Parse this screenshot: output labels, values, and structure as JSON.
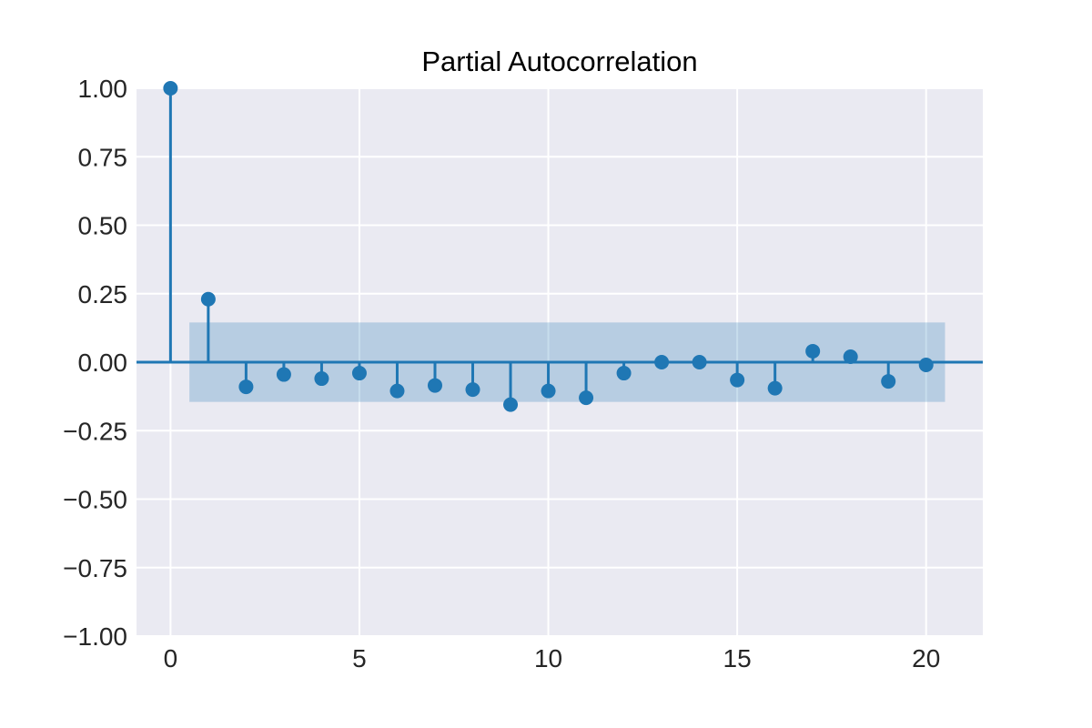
{
  "chart_data": {
    "type": "stem",
    "title": "Partial Autocorrelation",
    "xlabel": "",
    "ylabel": "",
    "xlim": [
      -0.9,
      21.5
    ],
    "ylim": [
      -1.0,
      1.0
    ],
    "x_ticks": [
      0,
      5,
      10,
      15,
      20
    ],
    "x_tick_labels": [
      "0",
      "5",
      "10",
      "15",
      "20"
    ],
    "y_ticks": [
      1.0,
      0.75,
      0.5,
      0.25,
      0.0,
      -0.25,
      -0.5,
      -0.75,
      -1.0
    ],
    "y_tick_labels": [
      "1.00",
      "0.75",
      "0.50",
      "0.25",
      "0.00",
      "−0.25",
      "−0.50",
      "−0.75",
      "−1.00"
    ],
    "grid": true,
    "confidence_band": {
      "x_range": [
        0.5,
        20.5
      ],
      "lower": -0.145,
      "upper": 0.145
    },
    "lags": [
      0,
      1,
      2,
      3,
      4,
      5,
      6,
      7,
      8,
      9,
      10,
      11,
      12,
      13,
      14,
      15,
      16,
      17,
      18,
      19,
      20
    ],
    "values": [
      1.0,
      0.23,
      -0.09,
      -0.045,
      -0.06,
      -0.04,
      -0.105,
      -0.085,
      -0.1,
      -0.155,
      -0.105,
      -0.13,
      -0.04,
      0.0,
      0.0,
      -0.065,
      -0.095,
      0.04,
      0.02,
      -0.07,
      -0.01
    ]
  },
  "colors": {
    "stem": "#1f77b4",
    "band": "#1f77b4",
    "axes_face": "#eaeaf2",
    "grid": "#ffffff",
    "text": "#262626"
  }
}
